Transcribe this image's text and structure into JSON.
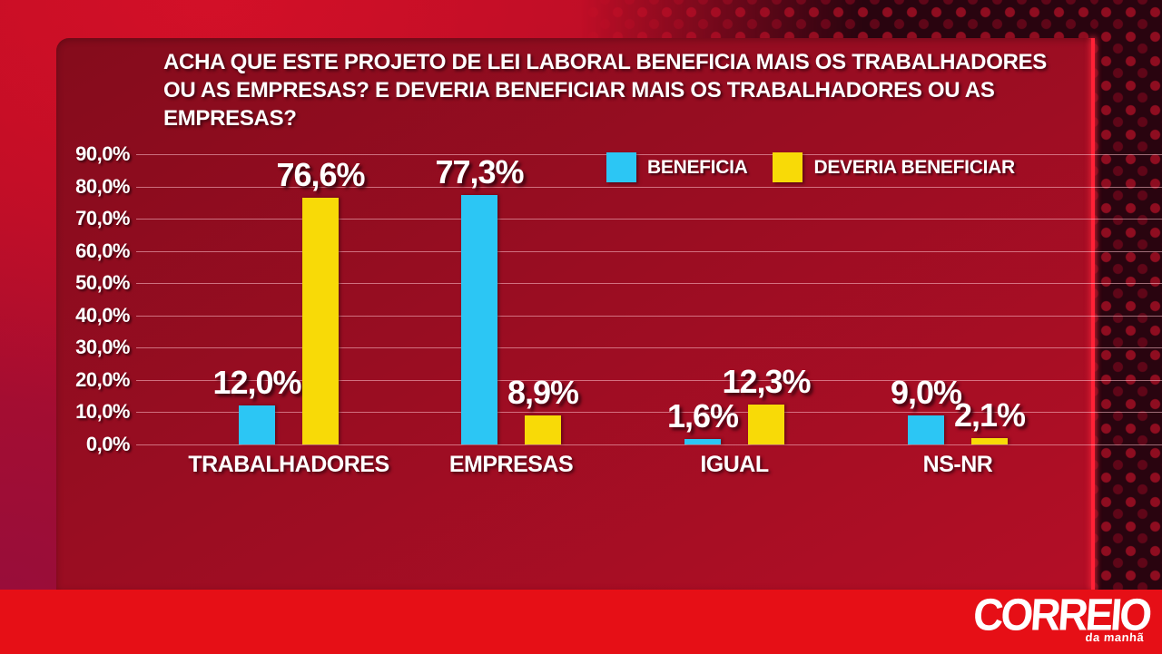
{
  "title": {
    "line1": "ACHA QUE ESTE PROJETO DE LEI LABORAL BENEFICIA MAIS OS TRABALHADORES",
    "line2": "OU AS EMPRESAS? E DEVERIA BENEFICIAR MAIS OS TRABALHADORES OU AS EMPRESAS?"
  },
  "chart_data": {
    "type": "bar",
    "title": "ACHA QUE ESTE PROJETO DE LEI LABORAL BENEFICIA MAIS OS TRABALHADORES OU AS EMPRESAS? E DEVERIA BENEFICIAR MAIS OS TRABALHADORES OU AS EMPRESAS?",
    "categories": [
      "TRABALHADORES",
      "EMPRESAS",
      "IGUAL",
      "NS-NR"
    ],
    "series": [
      {
        "name": "BENEFICIA",
        "color": "#2cc6f4",
        "values": [
          12.0,
          77.3,
          1.6,
          9.0
        ],
        "value_labels": [
          "12,0%",
          "77,3%",
          "1,6%",
          "9,0%"
        ]
      },
      {
        "name": "DEVERIA BENEFICIAR",
        "color": "#f8da07",
        "values": [
          76.6,
          8.9,
          12.3,
          2.1
        ],
        "value_labels": [
          "76,6%",
          "8,9%",
          "12,3%",
          "2,1%"
        ]
      }
    ],
    "ylim": [
      0,
      90
    ],
    "ytick_step": 10,
    "ytick_labels": [
      "0,0%",
      "10,0%",
      "20,0%",
      "30,0%",
      "40,0%",
      "50,0%",
      "60,0%",
      "70,0%",
      "80,0%",
      "90,0%"
    ],
    "grid": true,
    "legend_position": "inside-top-right",
    "xlabel": "",
    "ylabel": ""
  },
  "branding": {
    "logo_main": "CORREIO",
    "logo_sub": "da manhã",
    "strip_color": "#e60f16",
    "panel_edge_color": "#ff2136"
  }
}
